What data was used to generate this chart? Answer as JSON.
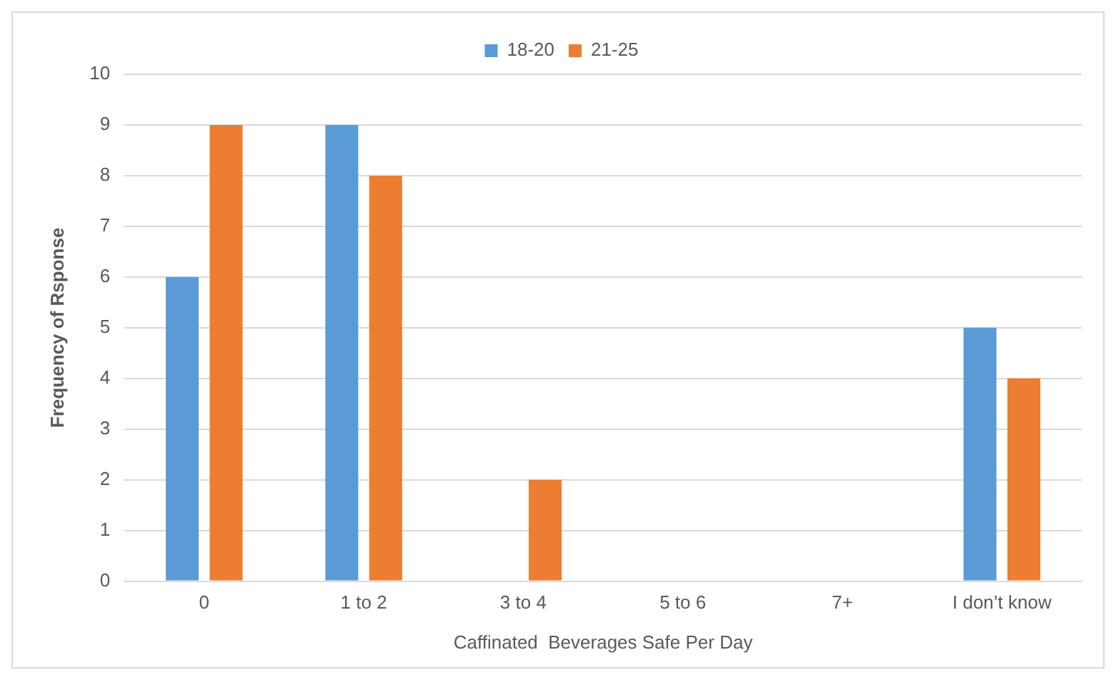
{
  "chart_data": {
    "type": "bar",
    "xlabel": "Caffinated  Beverages Safe Per Day",
    "ylabel": "Frequency of Rsponse",
    "categories": [
      "0",
      "1 to 2",
      "3 to 4",
      "5 to 6",
      "7+",
      "I don’t know"
    ],
    "series": [
      {
        "name": "18-20",
        "color": "#5b9bd5",
        "values": [
          6,
          9,
          0,
          0,
          0,
          5
        ]
      },
      {
        "name": "21-25",
        "color": "#ed7d31",
        "values": [
          9,
          8,
          2,
          0,
          0,
          4
        ]
      }
    ],
    "ylim": [
      0,
      10
    ],
    "yticks": [
      0,
      1,
      2,
      3,
      4,
      5,
      6,
      7,
      8,
      9,
      10
    ],
    "grid": "y",
    "legend": "top"
  }
}
